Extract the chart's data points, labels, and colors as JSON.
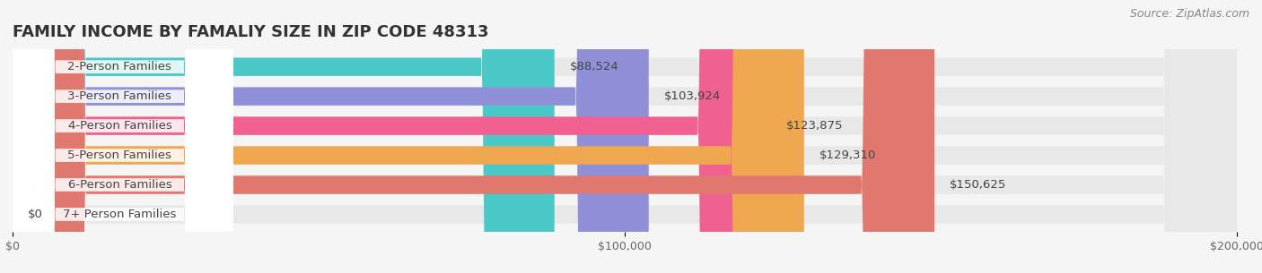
{
  "title": "FAMILY INCOME BY FAMALIY SIZE IN ZIP CODE 48313",
  "source": "Source: ZipAtlas.com",
  "categories": [
    "2-Person Families",
    "3-Person Families",
    "4-Person Families",
    "5-Person Families",
    "6-Person Families",
    "7+ Person Families"
  ],
  "values": [
    88524,
    103924,
    123875,
    129310,
    150625,
    0
  ],
  "bar_colors": [
    "#4bc8c8",
    "#9090d8",
    "#f06090",
    "#f0a850",
    "#e07870",
    "#90b8e8"
  ],
  "label_colors": [
    "#ffffff",
    "#ffffff",
    "#ffffff",
    "#ffffff",
    "#ffffff",
    "#555555"
  ],
  "value_labels": [
    "$88,524",
    "$103,924",
    "$123,875",
    "$129,310",
    "$150,625",
    "$0"
  ],
  "xlim": [
    0,
    200000
  ],
  "xticks": [
    0,
    100000,
    200000
  ],
  "xtick_labels": [
    "$0",
    "$100,000",
    "$200,000"
  ],
  "bg_color": "#f5f5f5",
  "bar_bg_color": "#e8e8e8",
  "title_fontsize": 13,
  "label_fontsize": 9.5,
  "value_fontsize": 9.5,
  "source_fontsize": 9
}
